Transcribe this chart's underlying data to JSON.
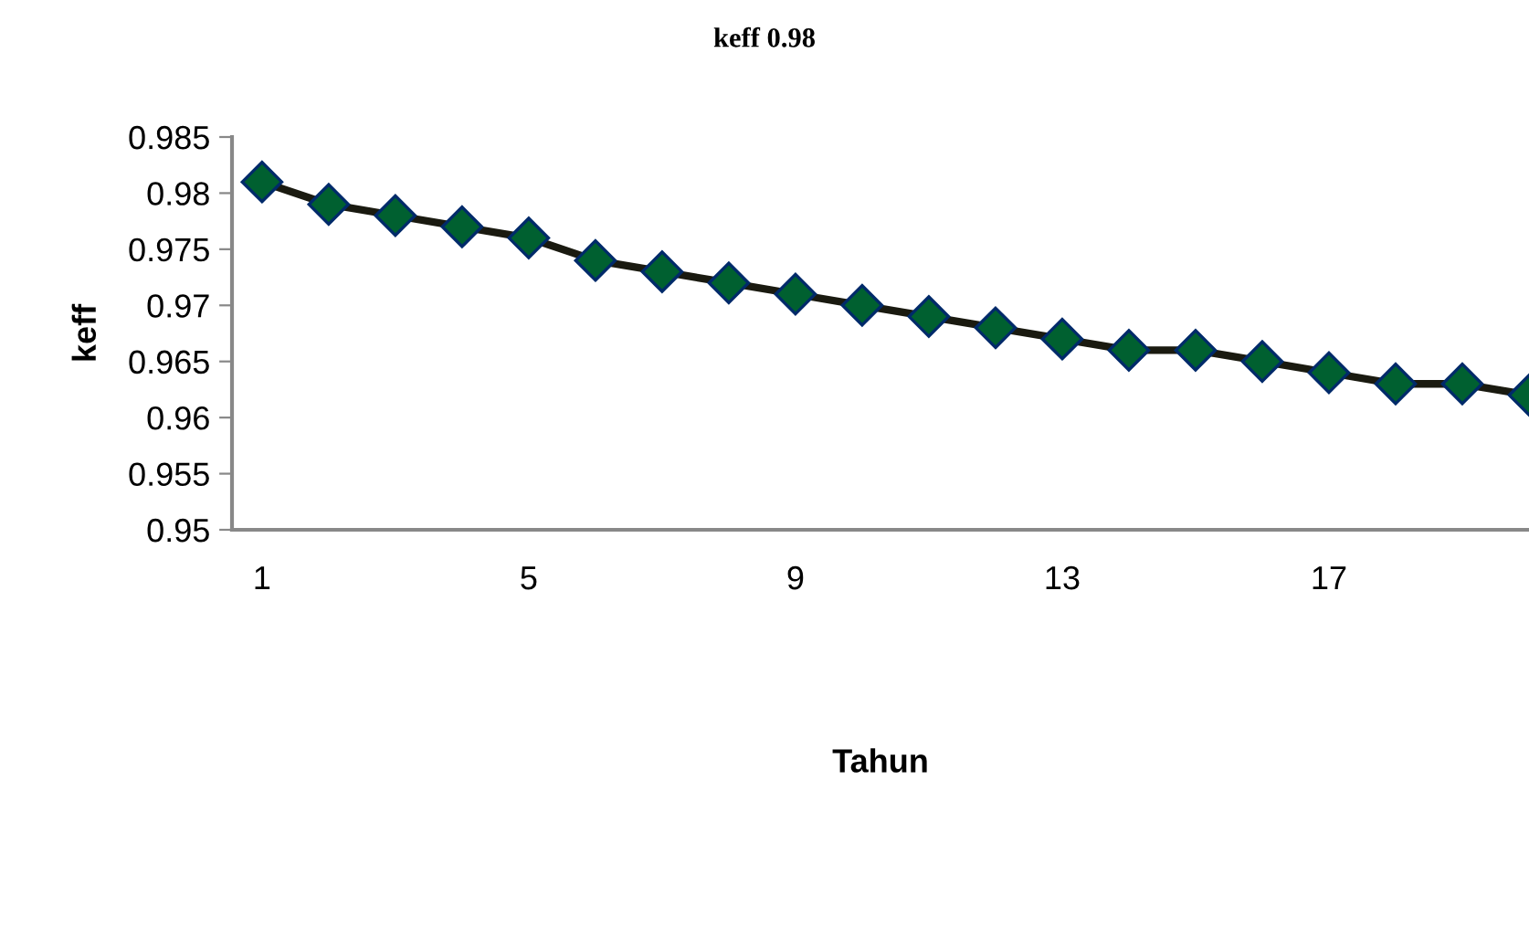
{
  "chart_data": {
    "type": "line",
    "title": "keff 0.98",
    "xlabel": "Tahun",
    "ylabel": "keff",
    "categories": [
      "1",
      null,
      null,
      null,
      "5",
      null,
      null,
      null,
      "9",
      null,
      null,
      null,
      "13",
      null,
      null,
      null,
      "17",
      null,
      null,
      null
    ],
    "series": [
      {
        "color": "#006030",
        "values": [
          0.981,
          0.979,
          0.978,
          0.977,
          0.976,
          0.974,
          0.973,
          0.972,
          0.971,
          0.97,
          0.969,
          0.968,
          0.967,
          0.966,
          0.966,
          0.965,
          0.964,
          0.963,
          0.963,
          0.962
        ]
      }
    ],
    "ylim": [
      0.95,
      0.985
    ],
    "yticks": [
      {
        "value": 0.95,
        "label": "0.95"
      },
      {
        "value": 0.955,
        "label": "0.955"
      },
      {
        "value": 0.96,
        "label": "0.96"
      },
      {
        "value": 0.965,
        "label": "0.965"
      },
      {
        "value": 0.97,
        "label": "0.97"
      },
      {
        "value": 0.975,
        "label": "0.975"
      },
      {
        "value": 0.98,
        "label": "0.98"
      },
      {
        "value": 0.985,
        "label": "0.985"
      }
    ],
    "grid": false,
    "legend": false,
    "marker": "diamond",
    "line_style": "solid"
  }
}
